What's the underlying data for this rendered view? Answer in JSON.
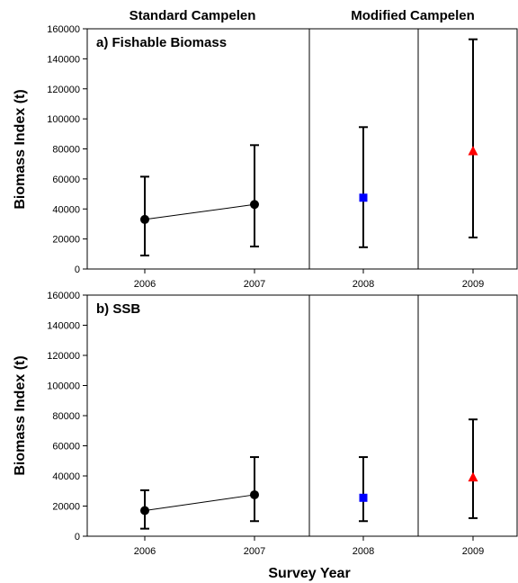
{
  "headers": {
    "left": "Standard Campelen",
    "right": "Modified Campelen"
  },
  "xlabel": "Survey Year",
  "ylabel": "Biomass Index (t)",
  "colors": {
    "standard": "#000000",
    "modified_2008": "#0000ff",
    "modified_2009": "#ff0000"
  },
  "chart_data": [
    {
      "type": "scatter",
      "title": "a) Fishable Biomass",
      "ylabel": "Biomass Index (t)",
      "ylim": [
        0,
        160000
      ],
      "yticks": [
        0,
        20000,
        40000,
        60000,
        80000,
        100000,
        120000,
        140000,
        160000
      ],
      "categories": [
        "2006",
        "2007",
        "2008",
        "2009"
      ],
      "points": [
        {
          "x": "2006",
          "y": 33000,
          "low": 9000,
          "high": 61500,
          "marker": "circle",
          "color": "#000000"
        },
        {
          "x": "2007",
          "y": 43000,
          "low": 15000,
          "high": 82500,
          "marker": "circle",
          "color": "#000000"
        },
        {
          "x": "2008",
          "y": 47500,
          "low": 14500,
          "high": 94500,
          "marker": "square",
          "color": "#0000ff"
        },
        {
          "x": "2009",
          "y": 78500,
          "low": 21000,
          "high": 153000,
          "marker": "triangle",
          "color": "#ff0000"
        }
      ],
      "connected": [
        "2006",
        "2007"
      ]
    },
    {
      "type": "scatter",
      "title": "b) SSB",
      "ylabel": "Biomass Index (t)",
      "xlabel": "Survey Year",
      "ylim": [
        0,
        160000
      ],
      "yticks": [
        0,
        20000,
        40000,
        60000,
        80000,
        100000,
        120000,
        140000,
        160000
      ],
      "categories": [
        "2006",
        "2007",
        "2008",
        "2009"
      ],
      "points": [
        {
          "x": "2006",
          "y": 17000,
          "low": 5000,
          "high": 30500,
          "marker": "circle",
          "color": "#000000"
        },
        {
          "x": "2007",
          "y": 27500,
          "low": 10000,
          "high": 52500,
          "marker": "circle",
          "color": "#000000"
        },
        {
          "x": "2008",
          "y": 25500,
          "low": 10000,
          "high": 52500,
          "marker": "square",
          "color": "#0000ff"
        },
        {
          "x": "2009",
          "y": 39000,
          "low": 12000,
          "high": 77500,
          "marker": "triangle",
          "color": "#ff0000"
        }
      ],
      "connected": [
        "2006",
        "2007"
      ]
    }
  ]
}
